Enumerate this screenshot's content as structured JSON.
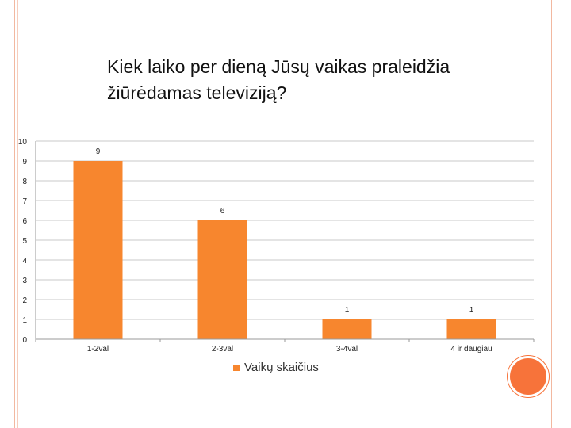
{
  "chart_data": {
    "type": "bar",
    "title": "Kiek laiko per dieną Jūsų vaikas praleidžia žiūrėdamas televiziją?",
    "categories": [
      "1-2val",
      "2-3val",
      "3-4val",
      "4 ir daugiau"
    ],
    "series": [
      {
        "name": "Vaikų skaičius",
        "values": [
          9,
          6,
          1,
          1
        ]
      }
    ],
    "ylim": [
      0,
      10
    ],
    "yticks": [
      0,
      1,
      2,
      3,
      4,
      5,
      6,
      7,
      8,
      9,
      10
    ],
    "grid": true,
    "legend": "bottom",
    "bar_color": "#f7862e",
    "grid_color": "#c8c8c8"
  },
  "decor": {
    "frame_color": "#f2b8a0",
    "circle_color": "#f7733a"
  }
}
